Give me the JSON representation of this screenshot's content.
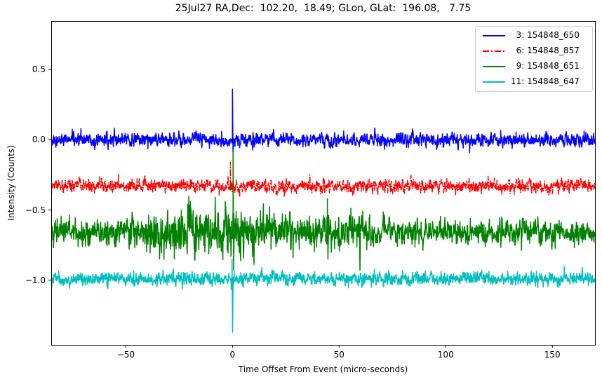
{
  "chart_data": {
    "type": "line",
    "title": "25Jul27 RA,Dec:  102.20,  18.49; GLon, GLat:  196.08,   7.75",
    "xlabel": "Time Offset From Event (micro-seconds)",
    "ylabel": "Intensity (Counts)",
    "xlim": [
      -85,
      170
    ],
    "ylim": [
      -1.46,
      0.845
    ],
    "xticks": [
      -50,
      0,
      50,
      100,
      150
    ],
    "xtick_labels": [
      "−50",
      "0",
      "50",
      "100",
      "150"
    ],
    "yticks": [
      0.5,
      0.0,
      -0.5,
      -1.0
    ],
    "ytick_labels": [
      "0.5",
      "0.0",
      "−0.5",
      "−1.0"
    ],
    "grid": false,
    "legend_position": "upper right",
    "series": [
      {
        "name": "3: 154848_650",
        "label": "  3: 154848_650",
        "color": "#0000ff",
        "linestyle": "solid",
        "baseline": 0.0,
        "noise_sigma": 0.028,
        "features": [
          {
            "x": 0.0,
            "min": -0.09,
            "max": 0.36
          }
        ],
        "seed": 3
      },
      {
        "name": "6: 154848_857",
        "label": "  6: 154848_857",
        "color": "#ff0000",
        "linestyle": "dashdot",
        "baseline": -0.33,
        "noise_sigma": 0.028,
        "features": [
          {
            "x": -1.0,
            "min": -0.36,
            "max": -0.16
          }
        ],
        "seed": 6
      },
      {
        "name": "9: 154848_651",
        "label": "  9: 154848_651",
        "color": "#008000",
        "linestyle": "solid",
        "baseline": -0.66,
        "noise_sigma": 0.05,
        "burst": {
          "center": -12,
          "width": 22,
          "extra_sigma": 0.07
        },
        "features": [
          {
            "x": 0.3,
            "min": -0.93,
            "max": -0.08
          },
          {
            "x": 44.5,
            "min": -0.85,
            "max": -0.42
          },
          {
            "x": 59.5,
            "min": -0.93,
            "max": -0.55
          }
        ],
        "seed": 9
      },
      {
        "name": "11: 154848_647",
        "label": "11: 154848_647",
        "color": "#00bfbf",
        "linestyle": "solid",
        "baseline": -0.99,
        "noise_sigma": 0.028,
        "features": [
          {
            "x": -0.2,
            "min": -1.37,
            "max": -0.85
          }
        ],
        "seed": 11
      }
    ]
  }
}
